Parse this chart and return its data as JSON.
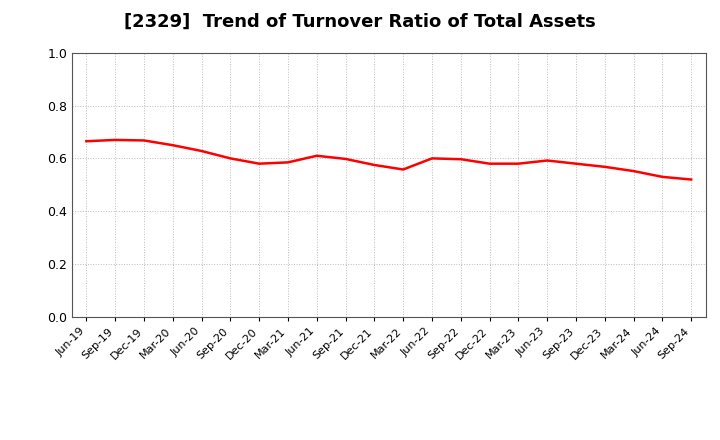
{
  "title": "[2329]  Trend of Turnover Ratio of Total Assets",
  "title_fontsize": 13,
  "line_color": "#FF0000",
  "line_width": 1.8,
  "background_color": "#FFFFFF",
  "ylim": [
    0.0,
    1.0
  ],
  "yticks": [
    0.0,
    0.2,
    0.4,
    0.6,
    0.8,
    1.0
  ],
  "x_labels": [
    "Jun-19",
    "Sep-19",
    "Dec-19",
    "Mar-20",
    "Jun-20",
    "Sep-20",
    "Dec-20",
    "Mar-21",
    "Jun-21",
    "Sep-21",
    "Dec-21",
    "Mar-22",
    "Jun-22",
    "Sep-22",
    "Dec-22",
    "Mar-23",
    "Jun-23",
    "Sep-23",
    "Dec-23",
    "Mar-24",
    "Jun-24",
    "Sep-24"
  ],
  "values": [
    0.665,
    0.67,
    0.668,
    0.65,
    0.628,
    0.6,
    0.58,
    0.585,
    0.61,
    0.598,
    0.575,
    0.558,
    0.6,
    0.597,
    0.58,
    0.58,
    0.592,
    0.58,
    0.568,
    0.552,
    0.53,
    0.52
  ],
  "grid_color": "#BBBBBB",
  "spine_color": "#555555"
}
